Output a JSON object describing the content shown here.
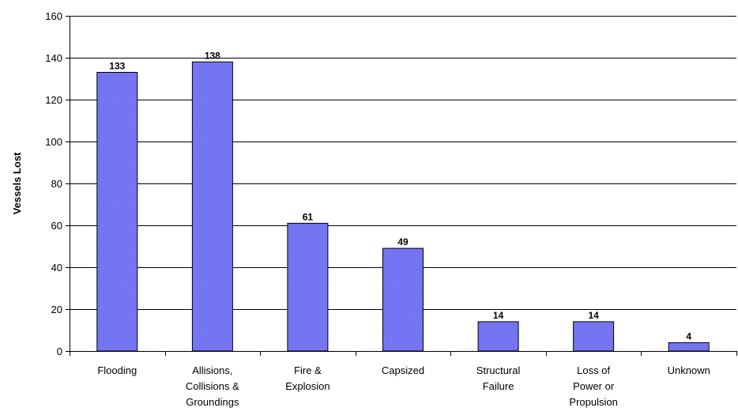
{
  "chart_data": {
    "type": "bar",
    "title": "",
    "xlabel": "",
    "ylabel": "Vessels Lost",
    "ylim": [
      0,
      160
    ],
    "yticks": [
      0,
      20,
      40,
      60,
      80,
      100,
      120,
      140,
      160
    ],
    "grid": true,
    "categories": [
      [
        "Flooding"
      ],
      [
        "Allisions,",
        "Collisions &",
        "Groundings"
      ],
      [
        "Fire &",
        "Explosion"
      ],
      [
        "Capsized"
      ],
      [
        "Structural",
        "Failure"
      ],
      [
        "Loss of",
        "Power or",
        "Propulsion"
      ],
      [
        "Unknown"
      ]
    ],
    "values": [
      133,
      138,
      61,
      49,
      14,
      14,
      4
    ],
    "bar_color": "#6b6bf0",
    "bar_edge_color": "#000000"
  }
}
